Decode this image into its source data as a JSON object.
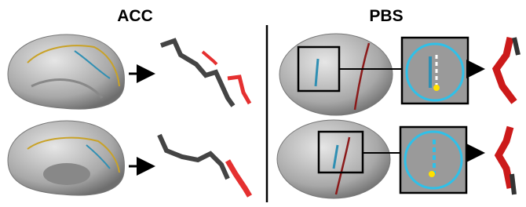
{
  "panels": [
    {
      "title": "ACC"
    },
    {
      "title": "PBS"
    }
  ]
}
